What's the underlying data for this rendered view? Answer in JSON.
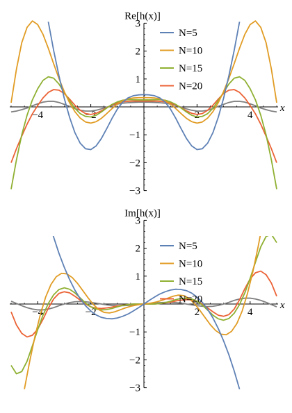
{
  "chart_data": [
    {
      "type": "line",
      "title": "Re[h(x)]",
      "xlabel": "x",
      "ylabel": "Re[h(x)]",
      "xlim": [
        -5.05,
        5.05
      ],
      "ylim": [
        -3,
        3
      ],
      "xticks": [
        -4,
        -2,
        2,
        4
      ],
      "xtick_labels": [
        "−4",
        "−2",
        "2",
        "4"
      ],
      "yticks": [
        -3,
        -2,
        -1,
        1,
        2,
        3
      ],
      "ytick_labels": [
        "−3",
        "−2",
        "−1",
        "1",
        "2",
        "3"
      ],
      "grid": false,
      "legend_position": "top-right",
      "series": [
        {
          "name": "N=5",
          "color": "#5E81B5",
          "x": [
            -3.6,
            -3.4,
            -3.2,
            -3.0,
            -2.8,
            -2.6,
            -2.4,
            -2.2,
            -2.0,
            -1.8,
            -1.6,
            -1.4,
            -1.2,
            -1.0,
            -0.8,
            -0.6,
            -0.4,
            -0.2,
            0.0,
            0.2,
            0.4,
            0.6,
            0.8,
            1.0,
            1.2,
            1.4,
            1.6,
            1.8,
            2.0,
            2.2,
            2.4,
            2.6,
            2.8,
            3.0,
            3.2,
            3.4,
            3.6
          ],
          "y": [
            3.05,
            2.03,
            1.12,
            0.31,
            -0.37,
            -0.92,
            -1.3,
            -1.5,
            -1.53,
            -1.4,
            -1.13,
            -0.78,
            -0.41,
            -0.08,
            0.17,
            0.32,
            0.4,
            0.43,
            0.44,
            0.43,
            0.4,
            0.32,
            0.17,
            -0.08,
            -0.41,
            -0.78,
            -1.13,
            -1.4,
            -1.53,
            -1.5,
            -1.3,
            -0.92,
            -0.37,
            0.31,
            1.12,
            2.03,
            3.05
          ]
        },
        {
          "name": "N=10",
          "color": "#E19C24",
          "x": [
            -5.0,
            -4.8,
            -4.6,
            -4.4,
            -4.2,
            -4.0,
            -3.8,
            -3.6,
            -3.4,
            -3.2,
            -3.0,
            -2.8,
            -2.6,
            -2.4,
            -2.2,
            -2.0,
            -1.8,
            -1.6,
            -1.4,
            -1.2,
            -1.0,
            -0.8,
            -0.6,
            -0.4,
            -0.2,
            0.0,
            0.2,
            0.4,
            0.6,
            0.8,
            1.0,
            1.2,
            1.4,
            1.6,
            1.8,
            2.0,
            2.2,
            2.4,
            2.6,
            2.8,
            3.0,
            3.2,
            3.4,
            3.6,
            3.8,
            4.0,
            4.2,
            4.4,
            4.6,
            4.8,
            5.0
          ],
          "y": [
            0.15,
            1.35,
            2.3,
            2.85,
            3.08,
            2.95,
            2.6,
            2.1,
            1.55,
            1.02,
            0.55,
            0.15,
            -0.17,
            -0.4,
            -0.54,
            -0.58,
            -0.53,
            -0.41,
            -0.24,
            -0.06,
            0.1,
            0.22,
            0.29,
            0.32,
            0.33,
            0.33,
            0.33,
            0.32,
            0.29,
            0.22,
            0.1,
            -0.06,
            -0.24,
            -0.41,
            -0.53,
            -0.58,
            -0.54,
            -0.4,
            -0.17,
            0.15,
            0.55,
            1.02,
            1.55,
            2.1,
            2.6,
            2.95,
            3.08,
            2.85,
            2.3,
            1.35,
            0.15
          ]
        },
        {
          "name": "N=15",
          "color": "#8FB032",
          "x": [
            -5.0,
            -4.8,
            -4.6,
            -4.4,
            -4.2,
            -4.0,
            -3.8,
            -3.6,
            -3.4,
            -3.2,
            -3.0,
            -2.8,
            -2.6,
            -2.4,
            -2.2,
            -2.0,
            -1.8,
            -1.6,
            -1.4,
            -1.2,
            -1.0,
            -0.8,
            -0.6,
            -0.4,
            -0.2,
            0.0,
            0.2,
            0.4,
            0.6,
            0.8,
            1.0,
            1.2,
            1.4,
            1.6,
            1.8,
            2.0,
            2.2,
            2.4,
            2.6,
            2.8,
            3.0,
            3.2,
            3.4,
            3.6,
            3.8,
            4.0,
            4.2,
            4.4,
            4.6,
            4.8,
            5.0
          ],
          "y": [
            -2.95,
            -1.9,
            -1.0,
            -0.3,
            0.25,
            0.65,
            0.95,
            1.08,
            1.03,
            0.82,
            0.52,
            0.22,
            -0.05,
            -0.24,
            -0.34,
            -0.36,
            -0.3,
            -0.18,
            -0.04,
            0.09,
            0.18,
            0.24,
            0.26,
            0.26,
            0.25,
            0.25,
            0.25,
            0.26,
            0.26,
            0.24,
            0.18,
            0.09,
            -0.04,
            -0.18,
            -0.3,
            -0.36,
            -0.34,
            -0.24,
            -0.05,
            0.22,
            0.52,
            0.82,
            1.03,
            1.08,
            0.95,
            0.65,
            0.25,
            -0.3,
            -1.0,
            -1.9,
            -2.95
          ]
        },
        {
          "name": "N=20",
          "color": "#EB6235",
          "x": [
            -5.0,
            -4.8,
            -4.6,
            -4.4,
            -4.2,
            -4.0,
            -3.8,
            -3.6,
            -3.4,
            -3.2,
            -3.0,
            -2.8,
            -2.6,
            -2.4,
            -2.2,
            -2.0,
            -1.8,
            -1.6,
            -1.4,
            -1.2,
            -1.0,
            -0.8,
            -0.6,
            -0.4,
            -0.2,
            0.0,
            0.2,
            0.4,
            0.6,
            0.8,
            1.0,
            1.2,
            1.4,
            1.6,
            1.8,
            2.0,
            2.2,
            2.4,
            2.6,
            2.8,
            3.0,
            3.2,
            3.4,
            3.6,
            3.8,
            4.0,
            4.2,
            4.4,
            4.6,
            4.8,
            5.0
          ],
          "y": [
            -2.0,
            -1.5,
            -1.05,
            -0.62,
            -0.25,
            0.05,
            0.32,
            0.52,
            0.62,
            0.6,
            0.48,
            0.28,
            0.06,
            -0.12,
            -0.24,
            -0.27,
            -0.23,
            -0.14,
            -0.03,
            0.07,
            0.14,
            0.18,
            0.2,
            0.21,
            0.21,
            0.21,
            0.21,
            0.21,
            0.2,
            0.18,
            0.14,
            0.07,
            -0.03,
            -0.14,
            -0.23,
            -0.27,
            -0.24,
            -0.12,
            0.06,
            0.28,
            0.48,
            0.6,
            0.62,
            0.52,
            0.32,
            0.05,
            -0.25,
            -0.62,
            -1.05,
            -1.5,
            -2.0
          ]
        },
        {
          "color": "#7F7F7F",
          "x": [
            -5.0,
            -4.8,
            -4.6,
            -4.4,
            -4.2,
            -4.0,
            -3.8,
            -3.6,
            -3.4,
            -3.2,
            -3.0,
            -2.8,
            -2.6,
            -2.4,
            -2.2,
            -2.0,
            -1.8,
            -1.6,
            -1.4,
            -1.2,
            -1.0,
            -0.8,
            -0.6,
            -0.4,
            -0.2,
            0.0,
            0.2,
            0.4,
            0.6,
            0.8,
            1.0,
            1.2,
            1.4,
            1.6,
            1.8,
            2.0,
            2.2,
            2.4,
            2.6,
            2.8,
            3.0,
            3.2,
            3.4,
            3.6,
            3.8,
            4.0,
            4.2,
            4.4,
            4.6,
            4.8,
            5.0
          ],
          "y": [
            -0.18,
            -0.15,
            -0.1,
            -0.04,
            0.04,
            0.11,
            0.17,
            0.2,
            0.2,
            0.16,
            0.09,
            0.02,
            -0.06,
            -0.12,
            -0.15,
            -0.15,
            -0.12,
            -0.07,
            -0.01,
            0.05,
            0.1,
            0.13,
            0.15,
            0.16,
            0.17,
            0.17,
            0.17,
            0.16,
            0.15,
            0.13,
            0.1,
            0.05,
            -0.01,
            -0.07,
            -0.12,
            -0.15,
            -0.15,
            -0.12,
            -0.06,
            0.02,
            0.09,
            0.16,
            0.2,
            0.2,
            0.17,
            0.11,
            0.04,
            -0.04,
            -0.1,
            -0.15,
            -0.18
          ]
        }
      ]
    },
    {
      "type": "line",
      "title": "Im[h(x)]",
      "xlabel": "x",
      "ylabel": "Im[h(x)]",
      "xlim": [
        -5.05,
        5.05
      ],
      "ylim": [
        -3,
        3
      ],
      "xticks": [
        -4,
        -2,
        2,
        4
      ],
      "xtick_labels": [
        "−4",
        "−2",
        "2",
        "4"
      ],
      "yticks": [
        -3,
        -2,
        -1,
        1,
        2,
        3
      ],
      "ytick_labels": [
        "−3",
        "−2",
        "−1",
        "1",
        "2",
        "3"
      ],
      "grid": false,
      "legend_position": "top-right",
      "series": [
        {
          "name": "N=5",
          "color": "#5E81B5",
          "x": [
            -3.6,
            -3.4,
            -3.2,
            -3.0,
            -2.8,
            -2.6,
            -2.4,
            -2.2,
            -2.0,
            -1.8,
            -1.6,
            -1.4,
            -1.2,
            -1.0,
            -0.8,
            -0.6,
            -0.4,
            -0.2,
            0.0,
            0.2,
            0.4,
            0.6,
            0.8,
            1.0,
            1.2,
            1.4,
            1.6,
            1.8,
            2.0,
            2.2,
            2.4,
            2.6,
            2.8,
            3.0,
            3.2,
            3.4,
            3.6
          ],
          "y": [
            3.05,
            2.4,
            1.82,
            1.32,
            0.88,
            0.5,
            0.19,
            -0.06,
            -0.25,
            -0.39,
            -0.48,
            -0.52,
            -0.53,
            -0.5,
            -0.44,
            -0.36,
            -0.25,
            -0.13,
            0.0,
            0.13,
            0.25,
            0.36,
            0.44,
            0.5,
            0.53,
            0.52,
            0.48,
            0.39,
            0.25,
            0.06,
            -0.19,
            -0.5,
            -0.88,
            -1.32,
            -1.82,
            -2.4,
            -3.05
          ]
        },
        {
          "name": "N=10",
          "color": "#E19C24",
          "x": [
            -4.5,
            -4.3,
            -4.1,
            -3.9,
            -3.7,
            -3.5,
            -3.3,
            -3.1,
            -2.9,
            -2.7,
            -2.5,
            -2.3,
            -2.1,
            -1.9,
            -1.7,
            -1.5,
            -1.3,
            -1.1,
            -0.9,
            -0.7,
            -0.5,
            -0.3,
            -0.1,
            0.1,
            0.3,
            0.5,
            0.7,
            0.9,
            1.1,
            1.3,
            1.5,
            1.7,
            1.9,
            2.1,
            2.3,
            2.5,
            2.7,
            2.9,
            3.1,
            3.3,
            3.5,
            3.7,
            3.9,
            4.1,
            4.3,
            4.5
          ],
          "y": [
            -3.05,
            -2.05,
            -1.15,
            -0.38,
            0.25,
            0.7,
            0.98,
            1.1,
            1.08,
            0.95,
            0.74,
            0.48,
            0.22,
            -0.02,
            -0.2,
            -0.3,
            -0.32,
            -0.28,
            -0.21,
            -0.14,
            -0.08,
            -0.04,
            -0.01,
            0.01,
            0.04,
            0.08,
            0.14,
            0.21,
            0.28,
            0.32,
            0.3,
            0.2,
            0.02,
            -0.22,
            -0.48,
            -0.74,
            -0.95,
            -1.08,
            -1.1,
            -0.98,
            -0.7,
            -0.25,
            0.38,
            1.15,
            2.05,
            3.05
          ]
        },
        {
          "name": "N=15",
          "color": "#8FB032",
          "x": [
            -5.0,
            -4.8,
            -4.6,
            -4.4,
            -4.2,
            -4.0,
            -3.8,
            -3.6,
            -3.4,
            -3.2,
            -3.0,
            -2.8,
            -2.6,
            -2.4,
            -2.2,
            -2.0,
            -1.8,
            -1.6,
            -1.4,
            -1.2,
            -1.0,
            -0.8,
            -0.6,
            -0.4,
            -0.2,
            0.0,
            0.2,
            0.4,
            0.6,
            0.8,
            1.0,
            1.2,
            1.4,
            1.6,
            1.8,
            2.0,
            2.2,
            2.4,
            2.6,
            2.8,
            3.0,
            3.2,
            3.4,
            3.6,
            3.8,
            4.0,
            4.2,
            4.4,
            4.6,
            4.8,
            5.0
          ],
          "y": [
            -2.2,
            -2.5,
            -2.42,
            -2.05,
            -1.5,
            -0.92,
            -0.4,
            0.02,
            0.33,
            0.52,
            0.58,
            0.53,
            0.4,
            0.22,
            0.04,
            -0.1,
            -0.18,
            -0.21,
            -0.2,
            -0.16,
            -0.1,
            -0.05,
            -0.02,
            0.0,
            0.0,
            0.0,
            0.0,
            0.0,
            0.02,
            0.05,
            0.1,
            0.16,
            0.2,
            0.21,
            0.18,
            0.1,
            -0.04,
            -0.22,
            -0.4,
            -0.53,
            -0.58,
            -0.52,
            -0.33,
            -0.02,
            0.4,
            0.92,
            1.5,
            2.05,
            2.42,
            2.5,
            2.2
          ]
        },
        {
          "name": "N=20",
          "color": "#EB6235",
          "x": [
            -5.0,
            -4.8,
            -4.6,
            -4.4,
            -4.2,
            -4.0,
            -3.8,
            -3.6,
            -3.4,
            -3.2,
            -3.0,
            -2.8,
            -2.6,
            -2.4,
            -2.2,
            -2.0,
            -1.8,
            -1.6,
            -1.4,
            -1.2,
            -1.0,
            -0.8,
            -0.6,
            -0.4,
            -0.2,
            0.0,
            0.2,
            0.4,
            0.6,
            0.8,
            1.0,
            1.2,
            1.4,
            1.6,
            1.8,
            2.0,
            2.2,
            2.4,
            2.6,
            2.8,
            3.0,
            3.2,
            3.4,
            3.6,
            3.8,
            4.0,
            4.2,
            4.4,
            4.6,
            4.8,
            5.0
          ],
          "y": [
            -0.28,
            -0.75,
            -1.05,
            -1.18,
            -1.12,
            -0.9,
            -0.55,
            -0.15,
            0.18,
            0.38,
            0.44,
            0.4,
            0.28,
            0.14,
            0.0,
            -0.1,
            -0.15,
            -0.16,
            -0.14,
            -0.11,
            -0.07,
            -0.04,
            -0.02,
            0.0,
            0.0,
            0.0,
            0.0,
            0.0,
            0.02,
            0.04,
            0.07,
            0.11,
            0.14,
            0.16,
            0.15,
            0.1,
            0.0,
            -0.14,
            -0.28,
            -0.4,
            -0.44,
            -0.38,
            -0.18,
            0.15,
            0.55,
            0.9,
            1.12,
            1.18,
            1.05,
            0.75,
            0.28
          ]
        },
        {
          "color": "#7F7F7F",
          "x": [
            -5.0,
            -4.8,
            -4.6,
            -4.4,
            -4.2,
            -4.0,
            -3.8,
            -3.6,
            -3.4,
            -3.2,
            -3.0,
            -2.8,
            -2.6,
            -2.4,
            -2.2,
            -2.0,
            -1.8,
            -1.6,
            -1.4,
            -1.2,
            -1.0,
            -0.8,
            -0.6,
            -0.4,
            -0.2,
            0.0,
            0.2,
            0.4,
            0.6,
            0.8,
            1.0,
            1.2,
            1.4,
            1.6,
            1.8,
            2.0,
            2.2,
            2.4,
            2.6,
            2.8,
            3.0,
            3.2,
            3.4,
            3.6,
            3.8,
            4.0,
            4.2,
            4.4,
            4.6,
            4.8,
            5.0
          ],
          "y": [
            0.1,
            0.02,
            -0.06,
            -0.13,
            -0.18,
            -0.21,
            -0.21,
            -0.18,
            -0.13,
            -0.06,
            0.0,
            0.05,
            0.08,
            0.09,
            0.08,
            0.06,
            0.03,
            0.0,
            -0.03,
            -0.05,
            -0.06,
            -0.06,
            -0.05,
            -0.03,
            -0.01,
            0.0,
            0.01,
            0.03,
            0.05,
            0.06,
            0.06,
            0.05,
            0.03,
            0.0,
            -0.03,
            -0.06,
            -0.08,
            -0.09,
            -0.08,
            -0.05,
            0.0,
            0.06,
            0.13,
            0.18,
            0.21,
            0.21,
            0.18,
            0.13,
            0.06,
            -0.02,
            -0.1
          ]
        }
      ]
    }
  ]
}
